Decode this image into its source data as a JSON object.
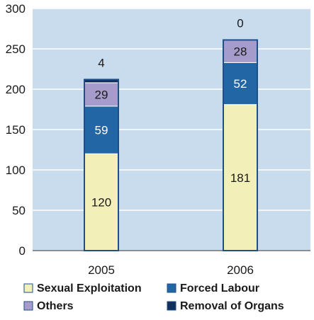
{
  "chart_data": {
    "type": "bar",
    "stacked": true,
    "categories": [
      "2005",
      "2006"
    ],
    "series": [
      {
        "name": "Sexual Exploitation",
        "values": [
          120,
          181
        ],
        "color": "#f2f0b8"
      },
      {
        "name": "Forced Labour",
        "values": [
          59,
          52
        ],
        "color": "#2266a6"
      },
      {
        "name": "Others",
        "values": [
          29,
          28
        ],
        "color": "#a69ccb"
      },
      {
        "name": "Removal of Organs",
        "values": [
          4,
          0
        ],
        "color": "#12305a"
      }
    ],
    "data_labels": [
      [
        "120",
        "59",
        "29",
        "4"
      ],
      [
        "181",
        "52",
        "28",
        "0"
      ]
    ],
    "ylim": [
      0,
      300
    ],
    "yticks": [
      "0",
      "50",
      "100",
      "150",
      "200",
      "250",
      "300"
    ],
    "grid": true,
    "plot_background": "#c9dcee",
    "legend_position": "bottom"
  }
}
